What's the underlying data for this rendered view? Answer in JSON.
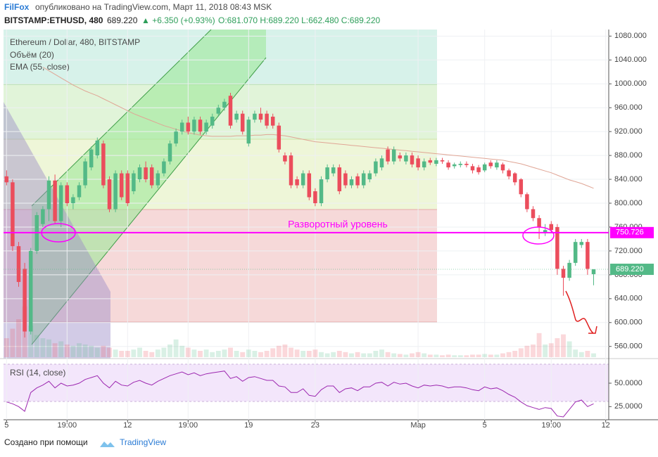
{
  "header": {
    "author": "FilFox",
    "published": "опубликовано на TradingView.com, Март 11, 2018 08:43 MSK",
    "symbol": "BITSTAMP:ETHUSD, 480",
    "price": "689.220",
    "change": "▲ +6.350 (+0.93%)",
    "ohlc": "O:681.070 H:689.220 L:662.480 C:689.220"
  },
  "footer": {
    "text": "Создано при помощи",
    "brand": "TradingView"
  },
  "chart_data": {
    "type": "candlestick",
    "title": "Ethereum / Dollar, 480, BITSTAMP",
    "up_color": "#53b987",
    "down_color": "#eb4d5c",
    "categories": [
      "5",
      null,
      null,
      null,
      null,
      null,
      null,
      null,
      null,
      null,
      "19:00",
      null,
      null,
      null,
      null,
      null,
      null,
      null,
      null,
      null,
      "12",
      null,
      null,
      null,
      null,
      null,
      null,
      null,
      null,
      null,
      "19:00",
      null,
      null,
      null,
      null,
      null,
      null,
      null,
      null,
      null,
      "19",
      null,
      null,
      null,
      null,
      null,
      null,
      null,
      null,
      null,
      null,
      "23",
      null,
      null,
      null,
      null,
      null,
      null,
      null,
      null,
      null,
      null,
      null,
      null,
      null,
      null,
      null,
      null,
      "Мар",
      null,
      null,
      null,
      null,
      null,
      null,
      null,
      null,
      null,
      null,
      "5",
      null,
      null,
      null,
      null,
      null,
      null,
      null,
      null,
      null,
      null,
      "19:00",
      null,
      null,
      null,
      null,
      null,
      null,
      null,
      null,
      "12"
    ],
    "ohlc": [
      [
        845,
        855,
        830,
        835
      ],
      [
        835,
        840,
        720,
        728
      ],
      [
        728,
        735,
        660,
        668
      ],
      [
        690,
        700,
        575,
        585
      ],
      [
        585,
        725,
        580,
        720
      ],
      [
        720,
        785,
        715,
        780
      ],
      [
        765,
        795,
        760,
        790
      ],
      [
        790,
        845,
        770,
        838
      ],
      [
        838,
        848,
        765,
        770
      ],
      [
        770,
        835,
        760,
        830
      ],
      [
        830,
        835,
        795,
        800
      ],
      [
        800,
        815,
        790,
        810
      ],
      [
        810,
        835,
        805,
        830
      ],
      [
        830,
        875,
        825,
        870
      ],
      [
        860,
        895,
        855,
        890
      ],
      [
        880,
        910,
        875,
        905
      ],
      [
        900,
        905,
        825,
        830
      ],
      [
        840,
        845,
        785,
        790
      ],
      [
        790,
        855,
        785,
        850
      ],
      [
        850,
        855,
        805,
        810
      ],
      [
        850,
        855,
        795,
        800
      ],
      [
        820,
        855,
        815,
        850
      ],
      [
        840,
        865,
        835,
        860
      ],
      [
        860,
        870,
        835,
        840
      ],
      [
        860,
        865,
        825,
        830
      ],
      [
        830,
        855,
        825,
        850
      ],
      [
        850,
        875,
        845,
        870
      ],
      [
        870,
        905,
        865,
        900
      ],
      [
        900,
        925,
        895,
        920
      ],
      [
        920,
        940,
        915,
        935
      ],
      [
        935,
        945,
        915,
        920
      ],
      [
        920,
        945,
        915,
        940
      ],
      [
        940,
        945,
        915,
        920
      ],
      [
        920,
        940,
        915,
        935
      ],
      [
        930,
        950,
        925,
        945
      ],
      [
        950,
        965,
        945,
        960
      ],
      [
        960,
        975,
        955,
        970
      ],
      [
        980,
        985,
        925,
        930
      ],
      [
        940,
        955,
        935,
        950
      ],
      [
        950,
        955,
        915,
        920
      ],
      [
        900,
        945,
        895,
        940
      ],
      [
        940,
        955,
        935,
        950
      ],
      [
        950,
        960,
        935,
        940
      ],
      [
        950,
        955,
        925,
        930
      ],
      [
        945,
        950,
        925,
        930
      ],
      [
        930,
        935,
        885,
        890
      ],
      [
        880,
        885,
        865,
        870
      ],
      [
        880,
        885,
        825,
        830
      ],
      [
        840,
        845,
        825,
        830
      ],
      [
        830,
        855,
        825,
        850
      ],
      [
        850,
        855,
        805,
        810
      ],
      [
        820,
        825,
        795,
        800
      ],
      [
        800,
        845,
        795,
        840
      ],
      [
        840,
        865,
        835,
        860
      ],
      [
        850,
        865,
        845,
        860
      ],
      [
        860,
        865,
        815,
        820
      ],
      [
        850,
        855,
        825,
        830
      ],
      [
        830,
        845,
        825,
        840
      ],
      [
        845,
        850,
        825,
        830
      ],
      [
        830,
        855,
        825,
        850
      ],
      [
        840,
        855,
        835,
        850
      ],
      [
        850,
        875,
        845,
        870
      ],
      [
        860,
        880,
        855,
        875
      ],
      [
        890,
        895,
        865,
        870
      ],
      [
        870,
        895,
        865,
        890
      ],
      [
        880,
        885,
        870,
        875
      ],
      [
        870,
        885,
        865,
        880
      ],
      [
        880,
        885,
        860,
        865
      ],
      [
        875,
        880,
        855,
        860
      ],
      [
        860,
        875,
        855,
        870
      ],
      [
        872,
        876,
        864,
        868
      ],
      [
        866,
        876,
        862,
        872
      ],
      [
        872,
        876,
        866,
        870
      ],
      [
        868,
        872,
        856,
        860
      ],
      [
        862,
        868,
        858,
        865
      ],
      [
        864,
        870,
        860,
        866
      ],
      [
        866,
        870,
        860,
        864
      ],
      [
        862,
        866,
        850,
        855
      ],
      [
        860,
        864,
        848,
        852
      ],
      [
        855,
        868,
        852,
        865
      ],
      [
        868,
        872,
        858,
        862
      ],
      [
        860,
        872,
        856,
        868
      ],
      [
        865,
        868,
        850,
        855
      ],
      [
        855,
        858,
        840,
        845
      ],
      [
        850,
        852,
        830,
        835
      ],
      [
        840,
        842,
        810,
        815
      ],
      [
        815,
        818,
        785,
        790
      ],
      [
        790,
        795,
        770,
        775
      ],
      [
        775,
        780,
        740,
        760
      ],
      [
        750,
        765,
        745,
        755
      ],
      [
        765,
        770,
        750,
        755
      ],
      [
        760,
        765,
        680,
        690
      ],
      [
        690,
        695,
        645,
        675
      ],
      [
        675,
        705,
        670,
        700
      ],
      [
        700,
        740,
        695,
        735
      ],
      [
        730,
        740,
        725,
        735
      ],
      [
        735,
        740,
        680,
        690
      ],
      [
        681.07,
        689.22,
        662.48,
        689.22
      ],
      null,
      null
    ],
    "ylim": [
      542,
      1091
    ],
    "yticks": [
      {
        "value": 560,
        "label": "560.000"
      },
      {
        "value": 600,
        "label": "600.000"
      },
      {
        "value": 640,
        "label": "640.000"
      },
      {
        "value": 680,
        "label": "680.000"
      },
      {
        "value": 720,
        "label": "720.000"
      },
      {
        "value": 760,
        "label": "760.000"
      },
      {
        "value": 800,
        "label": "800.000"
      },
      {
        "value": 840,
        "label": "840.000"
      },
      {
        "value": 880,
        "label": "880.000"
      },
      {
        "value": 920,
        "label": "920.000"
      },
      {
        "value": 960,
        "label": "960.000"
      },
      {
        "value": 1000,
        "label": "1000.000"
      },
      {
        "value": 1040,
        "label": "1040.000"
      },
      {
        "value": 1080,
        "label": "1080.000"
      }
    ],
    "grid": true,
    "level": {
      "value": 750.726,
      "label": "750.726"
    },
    "level_color": "#ff00ff",
    "last_price": {
      "value": 689.22,
      "label": "689.220"
    },
    "annotation": "Разворотный уровень",
    "volume": {
      "name": "Объём (20)",
      "values": [
        30,
        45,
        60,
        80,
        50,
        35,
        30,
        28,
        22,
        25,
        20,
        18,
        22,
        20,
        18,
        15,
        18,
        15,
        12,
        10,
        10,
        12,
        15,
        10,
        8,
        12,
        15,
        20,
        28,
        18,
        15,
        12,
        10,
        12,
        8,
        10,
        12,
        15,
        10,
        8,
        12,
        10,
        8,
        10,
        14,
        18,
        20,
        15,
        12,
        10,
        10,
        12,
        8,
        6,
        8,
        10,
        8,
        6,
        8,
        6,
        6,
        10,
        12,
        8,
        6,
        5,
        4,
        6,
        8,
        6,
        4,
        4,
        3,
        4,
        3,
        3,
        3,
        4,
        4,
        5,
        4,
        4,
        6,
        8,
        10,
        14,
        18,
        20,
        38,
        20,
        22,
        30,
        36,
        25,
        12,
        8,
        10,
        6,
        null,
        null
      ]
    },
    "ema": {
      "name": "EMA (55, close)",
      "color": "#e0a595",
      "values": [
        null,
        null,
        null,
        null,
        null,
        null,
        1028,
        1022,
        1016,
        1010,
        1004,
        998,
        993,
        988,
        984,
        980,
        975,
        970,
        965,
        960,
        955,
        950,
        946,
        942,
        938,
        934,
        930,
        927,
        924,
        921,
        918,
        916,
        914,
        913,
        912,
        912,
        912,
        912,
        913,
        913,
        913,
        914,
        914,
        915,
        915,
        914,
        913,
        911,
        909,
        907,
        905,
        903,
        902,
        901,
        900,
        899,
        898,
        897,
        896,
        895,
        894,
        893,
        892,
        891,
        890,
        889,
        888,
        887,
        886,
        885,
        884,
        883,
        882,
        881,
        880,
        879,
        878,
        877,
        876,
        875,
        874,
        873,
        872,
        870,
        868,
        866,
        863,
        860,
        857,
        854,
        851,
        847,
        843,
        839,
        836,
        833,
        829,
        825,
        null,
        null
      ]
    },
    "rsi": {
      "name": "RSI (14, close)",
      "color": "#9c27b0",
      "ylim": [
        11,
        74
      ],
      "yticks": [
        {
          "value": 50,
          "label": "50.0000"
        },
        {
          "value": 25,
          "label": "25.0000"
        }
      ],
      "values": [
        30,
        28,
        25,
        20,
        40,
        45,
        48,
        52,
        45,
        50,
        47,
        48,
        50,
        54,
        56,
        58,
        50,
        45,
        52,
        48,
        47,
        51,
        53,
        50,
        48,
        52,
        55,
        58,
        60,
        62,
        59,
        61,
        58,
        60,
        61,
        62,
        63,
        55,
        57,
        52,
        56,
        57,
        55,
        53,
        53,
        47,
        46,
        40,
        40,
        44,
        37,
        36,
        43,
        47,
        47,
        40,
        44,
        45,
        42,
        46,
        46,
        50,
        51,
        47,
        51,
        49,
        50,
        47,
        45,
        48,
        47,
        48,
        47,
        45,
        46,
        46,
        45,
        43,
        42,
        46,
        44,
        45,
        42,
        38,
        35,
        30,
        26,
        24,
        22,
        24,
        23,
        15,
        14,
        22,
        30,
        32,
        25,
        28,
        null,
        null
      ]
    }
  }
}
